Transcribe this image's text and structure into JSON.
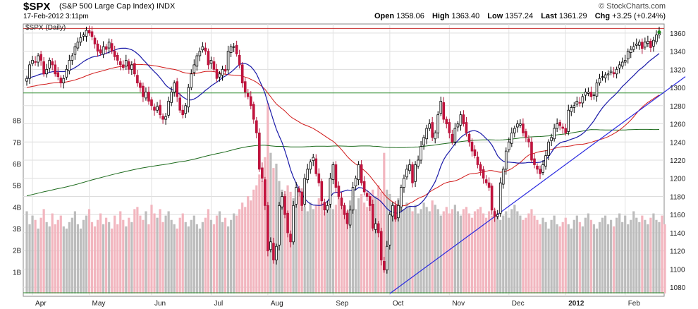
{
  "header": {
    "symbol": "$SPX",
    "name": "(S&P 500 Large Cap Index)",
    "exchange": "INDX",
    "timestamp": "17-Feb-2012 3:11pm",
    "watermark": "© StockCharts.com",
    "quote": {
      "open_label": "Open",
      "open": "1358.06",
      "high_label": "High",
      "high": "1363.40",
      "low_label": "Low",
      "low": "1357.24",
      "last_label": "Last",
      "last": "1361.29",
      "chg_label": "Chg",
      "chg": "+3.25 (+0.24%)"
    }
  },
  "chart_data": {
    "type": "candlestick",
    "panel_label": "$SPX (Daily)",
    "ylim": [
      1070,
      1370
    ],
    "y_ticks": [
      1080,
      1100,
      1120,
      1140,
      1160,
      1180,
      1200,
      1220,
      1240,
      1260,
      1280,
      1300,
      1320,
      1340,
      1360
    ],
    "volume_ticks": [
      "1B",
      "2B",
      "3B",
      "4B",
      "5B",
      "6B",
      "7B",
      "8B"
    ],
    "volume_max": 9,
    "month_labels": [
      {
        "label": "Apr",
        "day": 2
      },
      {
        "label": "May",
        "day": 22
      },
      {
        "label": "Jun",
        "day": 44
      },
      {
        "label": "Jul",
        "day": 65
      },
      {
        "label": "Aug",
        "day": 85
      },
      {
        "label": "Sep",
        "day": 108
      },
      {
        "label": "Oct",
        "day": 128
      },
      {
        "label": "Nov",
        "day": 149
      },
      {
        "label": "Dec",
        "day": 170
      },
      {
        "label": "2012",
        "day": 190
      },
      {
        "label": "Feb",
        "day": 211
      }
    ],
    "total_days": 225,
    "closes": [
      1310,
      1325,
      1330,
      1328,
      1335,
      1330,
      1315,
      1320,
      1330,
      1325,
      1315,
      1312,
      1305,
      1310,
      1320,
      1330,
      1335,
      1345,
      1350,
      1355,
      1358,
      1363,
      1360,
      1356,
      1348,
      1340,
      1338,
      1345,
      1342,
      1350,
      1340,
      1334,
      1330,
      1325,
      1322,
      1330,
      1320,
      1325,
      1315,
      1305,
      1300,
      1290,
      1295,
      1285,
      1280,
      1275,
      1279,
      1270,
      1265,
      1268,
      1285,
      1295,
      1305,
      1290,
      1275,
      1270,
      1280,
      1300,
      1315,
      1325,
      1335,
      1340,
      1345,
      1340,
      1325,
      1330,
      1320,
      1310,
      1315,
      1320,
      1318,
      1340,
      1345,
      1345,
      1337,
      1325,
      1305,
      1295,
      1290,
      1280,
      1265,
      1250,
      1210,
      1200,
      1170,
      1120,
      1130,
      1110,
      1125,
      1170,
      1180,
      1160,
      1140,
      1130,
      1170,
      1190,
      1185,
      1170,
      1200,
      1210,
      1218,
      1223,
      1205,
      1195,
      1175,
      1165,
      1170,
      1200,
      1215,
      1190,
      1180,
      1170,
      1160,
      1150,
      1165,
      1190,
      1200,
      1215,
      1195,
      1185,
      1180,
      1170,
      1145,
      1150,
      1140,
      1110,
      1099,
      1125,
      1160,
      1170,
      1155,
      1170,
      1190,
      1200,
      1210,
      1215,
      1195,
      1215,
      1220,
      1235,
      1245,
      1255,
      1260,
      1245,
      1250,
      1270,
      1285,
      1265,
      1260,
      1250,
      1240,
      1255,
      1260,
      1270,
      1260,
      1250,
      1240,
      1230,
      1225,
      1215,
      1208,
      1200,
      1195,
      1190,
      1165,
      1158,
      1160,
      1195,
      1210,
      1230,
      1240,
      1250,
      1255,
      1260,
      1260,
      1250,
      1245,
      1240,
      1220,
      1215,
      1210,
      1205,
      1215,
      1225,
      1240,
      1245,
      1255,
      1260,
      1258,
      1255,
      1250,
      1275,
      1278,
      1280,
      1285,
      1283,
      1290,
      1295,
      1295,
      1290,
      1292,
      1305,
      1310,
      1312,
      1314,
      1315,
      1318,
      1315,
      1320,
      1325,
      1328,
      1330,
      1340,
      1342,
      1345,
      1348,
      1350,
      1343,
      1350,
      1351,
      1344,
      1352,
      1358,
      1361
    ],
    "volumes": [
      3.8,
      3.2,
      3.6,
      3.4,
      3.0,
      3.5,
      3.9,
      3.3,
      3.1,
      3.7,
      3.2,
      3.4,
      3.6,
      3.1,
      3.0,
      3.3,
      3.5,
      3.8,
      3.2,
      3.0,
      3.4,
      3.6,
      3.9,
      3.3,
      3.1,
      3.4,
      3.7,
      3.2,
      3.5,
      3.3,
      3.0,
      3.6,
      3.2,
      3.8,
      3.4,
      3.1,
      3.5,
      3.3,
      3.9,
      4.0,
      3.6,
      3.4,
      3.8,
      3.2,
      4.1,
      3.7,
      3.5,
      3.9,
      3.3,
      3.6,
      3.8,
      3.4,
      3.2,
      3.0,
      3.5,
      3.7,
      3.3,
      3.1,
      3.4,
      3.6,
      3.2,
      3.0,
      3.3,
      3.5,
      3.9,
      3.4,
      3.2,
      3.6,
      3.8,
      3.3,
      3.5,
      3.1,
      3.4,
      3.7,
      3.6,
      3.9,
      4.2,
      4.0,
      4.5,
      4.3,
      4.8,
      5.0,
      5.5,
      5.2,
      6.3,
      8.8,
      6.5,
      5.8,
      6.0,
      5.2,
      4.8,
      4.6,
      5.0,
      4.7,
      4.4,
      4.1,
      4.5,
      4.3,
      4.0,
      3.8,
      4.2,
      3.9,
      4.1,
      4.4,
      4.2,
      3.8,
      4.0,
      4.3,
      3.9,
      4.1,
      4.5,
      4.2,
      4.0,
      3.8,
      4.3,
      4.1,
      3.9,
      4.4,
      4.6,
      4.2,
      4.0,
      4.3,
      4.8,
      4.5,
      5.0,
      4.7,
      6.5,
      4.8,
      4.6,
      4.2,
      4.0,
      4.4,
      4.1,
      3.9,
      4.2,
      4.0,
      3.8,
      4.1,
      3.7,
      3.9,
      4.2,
      4.0,
      3.8,
      4.3,
      4.1,
      3.9,
      3.6,
      3.8,
      4.0,
      3.7,
      3.9,
      4.1,
      3.8,
      3.6,
      3.9,
      4.0,
      3.7,
      3.5,
      3.8,
      3.9,
      4.0,
      3.7,
      3.5,
      3.8,
      3.6,
      3.9,
      3.7,
      3.4,
      3.6,
      3.8,
      3.5,
      3.9,
      4.1,
      3.8,
      3.6,
      3.4,
      3.5,
      3.7,
      3.9,
      3.6,
      3.4,
      3.2,
      3.5,
      3.3,
      3.0,
      3.4,
      3.6,
      3.2,
      3.1,
      3.3,
      3.5,
      3.2,
      3.0,
      3.4,
      3.6,
      3.3,
      3.1,
      3.5,
      3.7,
      3.4,
      3.2,
      3.0,
      3.3,
      3.5,
      3.6,
      3.2,
      3.4,
      3.1,
      3.5,
      3.7,
      3.3,
      3.6,
      3.2,
      3.4,
      3.8,
      3.5,
      3.3,
      3.6,
      3.4,
      3.2,
      3.5,
      3.7,
      3.4,
      3.3,
      3.6,
      3.2
    ]
  }
}
